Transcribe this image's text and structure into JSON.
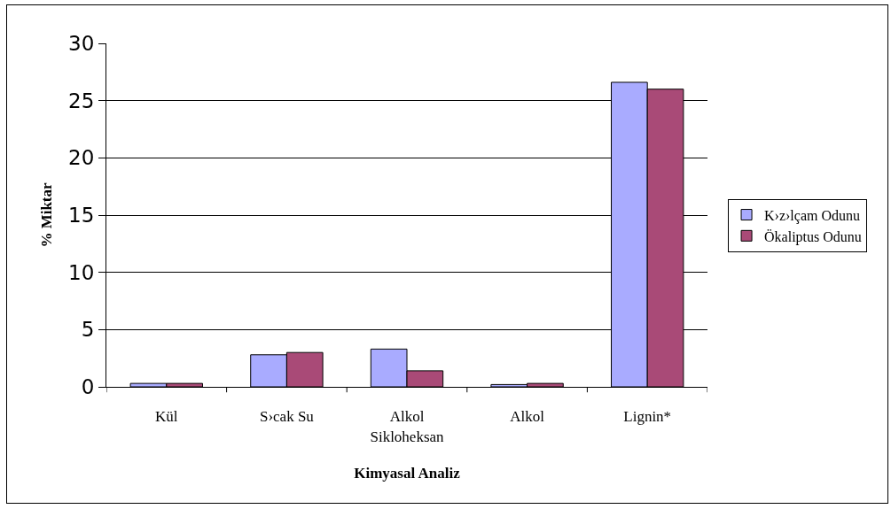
{
  "chart_data": {
    "type": "bar",
    "xlabel": "Kimyasal Analiz",
    "ylabel": "% Miktar",
    "categories": [
      "Kül",
      "S›cak Su",
      "Alkol Sikloheksan",
      "Alkol",
      "Lignin*"
    ],
    "series": [
      {
        "name": "K›z›lçam Odunu",
        "color": "#a9abff",
        "values": [
          0.3,
          2.8,
          3.3,
          0.2,
          26.6
        ]
      },
      {
        "name": "Ökaliptus Odunu",
        "color": "#a94a77",
        "values": [
          0.3,
          3.0,
          1.4,
          0.3,
          26.0
        ]
      }
    ],
    "ylim": [
      0,
      30
    ],
    "yticks": [
      0,
      5,
      10,
      15,
      20,
      25,
      30
    ],
    "grid": "y",
    "legend": "right"
  }
}
